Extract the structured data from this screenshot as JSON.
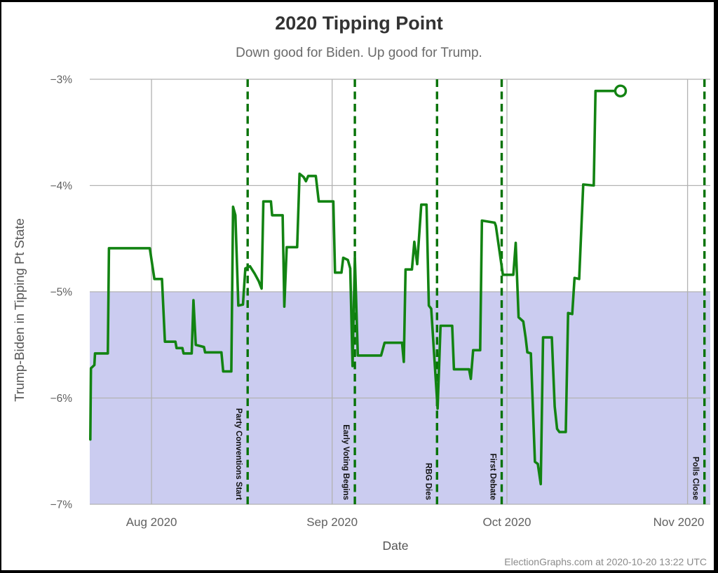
{
  "window": {
    "background": "#ffffff",
    "border_color": "#000000"
  },
  "header": {
    "title": "2020 Tipping Point",
    "subtitle": "Down good for Biden. Up good for Trump."
  },
  "footer": {
    "credit": "ElectionGraphs.com at 2020-10-20 13:22 UTC"
  },
  "chart_data": {
    "type": "line",
    "title": "2020 Tipping Point",
    "subtitle": "Down good for Biden. Up good for Trump.",
    "xlabel": "Date",
    "ylabel": "Trump-Biden in Tipping Pt State",
    "grid": true,
    "x_epoch": "2020-07-20",
    "x_domain_days": [
      1.4,
      107.9
    ],
    "ylim": [
      -7,
      -3
    ],
    "y_ticks": [
      {
        "value": -3,
        "label": "−3%"
      },
      {
        "value": -4,
        "label": "−4%"
      },
      {
        "value": -5,
        "label": "−5%"
      },
      {
        "value": -6,
        "label": "−6%"
      },
      {
        "value": -7,
        "label": "−7%"
      }
    ],
    "x_ticks": [
      {
        "t": 12,
        "label": "Aug 2020"
      },
      {
        "t": 43,
        "label": "Sep 2020"
      },
      {
        "t": 73,
        "label": "Oct 2020"
      },
      {
        "t": 104,
        "label": "Nov 2020"
      }
    ],
    "band": {
      "from": -7,
      "to": -5,
      "color": "#cbccf0"
    },
    "events": [
      {
        "label": "Party Conventions Start",
        "date": "2020-08-17",
        "t": 28.5
      },
      {
        "label": "Early Voting Begins",
        "date": "2020-09-04",
        "t": 46.9
      },
      {
        "label": "RBG Dies",
        "date": "2020-09-18",
        "t": 61.0
      },
      {
        "label": "First Debate",
        "date": "2020-09-29",
        "t": 72.1
      },
      {
        "label": "Polls Close",
        "date": "2020-11-03",
        "t": 106.9
      }
    ],
    "colors": {
      "series": "#128312",
      "events": "#077307",
      "gridline": "#b2b2b2",
      "band": "#cbccf0",
      "title_text": "#333333",
      "subtitle_text": "#6a6a6a",
      "axis_text": "#606060",
      "event_text": "#111111",
      "credit_text": "#8a8a8a"
    },
    "series": [
      {
        "name": "Trump-Biden margin in tipping point state (%)",
        "endpoint_marker": "open-circle",
        "last_point": {
          "t": 92.5,
          "value": -3.11,
          "date": "2020-10-20"
        },
        "points": [
          [
            1.5,
            -6.39
          ],
          [
            1.6,
            -5.72
          ],
          [
            2.2,
            -5.69
          ],
          [
            2.3,
            -5.58
          ],
          [
            4.5,
            -5.58
          ],
          [
            4.7,
            -4.59
          ],
          [
            11.7,
            -4.59
          ],
          [
            12.5,
            -4.88
          ],
          [
            13.8,
            -4.88
          ],
          [
            14.3,
            -5.47
          ],
          [
            16.1,
            -5.47
          ],
          [
            16.3,
            -5.53
          ],
          [
            17.3,
            -5.53
          ],
          [
            17.5,
            -5.58
          ],
          [
            18.9,
            -5.58
          ],
          [
            19.2,
            -5.08
          ],
          [
            19.6,
            -5.5
          ],
          [
            21.0,
            -5.52
          ],
          [
            21.2,
            -5.57
          ],
          [
            24.0,
            -5.57
          ],
          [
            24.3,
            -5.75
          ],
          [
            25.7,
            -5.75
          ],
          [
            26.0,
            -4.2
          ],
          [
            26.4,
            -4.28
          ],
          [
            26.9,
            -5.13
          ],
          [
            27.7,
            -5.12
          ],
          [
            28.1,
            -4.78
          ],
          [
            28.9,
            -4.76
          ],
          [
            29.7,
            -4.83
          ],
          [
            30.4,
            -4.9
          ],
          [
            30.9,
            -4.97
          ],
          [
            31.2,
            -4.15
          ],
          [
            32.5,
            -4.15
          ],
          [
            32.7,
            -4.28
          ],
          [
            34.5,
            -4.28
          ],
          [
            34.8,
            -5.14
          ],
          [
            35.2,
            -4.58
          ],
          [
            37.0,
            -4.58
          ],
          [
            37.4,
            -3.89
          ],
          [
            38.1,
            -3.92
          ],
          [
            38.5,
            -3.96
          ],
          [
            38.9,
            -3.91
          ],
          [
            40.2,
            -3.91
          ],
          [
            40.7,
            -4.15
          ],
          [
            43.2,
            -4.15
          ],
          [
            43.5,
            -4.82
          ],
          [
            44.6,
            -4.82
          ],
          [
            44.9,
            -4.68
          ],
          [
            45.7,
            -4.7
          ],
          [
            46.1,
            -4.78
          ],
          [
            46.5,
            -5.7
          ],
          [
            46.9,
            -4.68
          ],
          [
            47.4,
            -5.6
          ],
          [
            51.4,
            -5.6
          ],
          [
            52.0,
            -5.48
          ],
          [
            55.0,
            -5.48
          ],
          [
            55.3,
            -5.66
          ],
          [
            55.6,
            -4.79
          ],
          [
            56.7,
            -4.79
          ],
          [
            57.1,
            -4.53
          ],
          [
            57.6,
            -4.74
          ],
          [
            58.3,
            -4.18
          ],
          [
            59.2,
            -4.18
          ],
          [
            59.6,
            -5.13
          ],
          [
            60.0,
            -5.16
          ],
          [
            61.1,
            -6.1
          ],
          [
            61.6,
            -5.32
          ],
          [
            63.6,
            -5.32
          ],
          [
            63.9,
            -5.73
          ],
          [
            66.5,
            -5.73
          ],
          [
            66.8,
            -5.82
          ],
          [
            67.2,
            -5.55
          ],
          [
            68.4,
            -5.55
          ],
          [
            68.7,
            -4.33
          ],
          [
            70.9,
            -4.35
          ],
          [
            71.1,
            -4.38
          ],
          [
            72.3,
            -4.84
          ],
          [
            74.1,
            -4.84
          ],
          [
            74.5,
            -4.54
          ],
          [
            75.0,
            -5.24
          ],
          [
            75.8,
            -5.28
          ],
          [
            76.2,
            -5.43
          ],
          [
            76.5,
            -5.57
          ],
          [
            77.1,
            -5.58
          ],
          [
            77.8,
            -6.6
          ],
          [
            78.3,
            -6.62
          ],
          [
            78.8,
            -6.81
          ],
          [
            79.2,
            -5.43
          ],
          [
            80.7,
            -5.43
          ],
          [
            81.2,
            -6.08
          ],
          [
            81.6,
            -6.29
          ],
          [
            82.0,
            -6.32
          ],
          [
            83.1,
            -6.32
          ],
          [
            83.5,
            -5.2
          ],
          [
            84.2,
            -5.21
          ],
          [
            84.6,
            -4.87
          ],
          [
            85.4,
            -4.88
          ],
          [
            86.1,
            -3.99
          ],
          [
            87.9,
            -4.0
          ],
          [
            88.2,
            -3.11
          ],
          [
            92.5,
            -3.11
          ]
        ]
      }
    ]
  }
}
